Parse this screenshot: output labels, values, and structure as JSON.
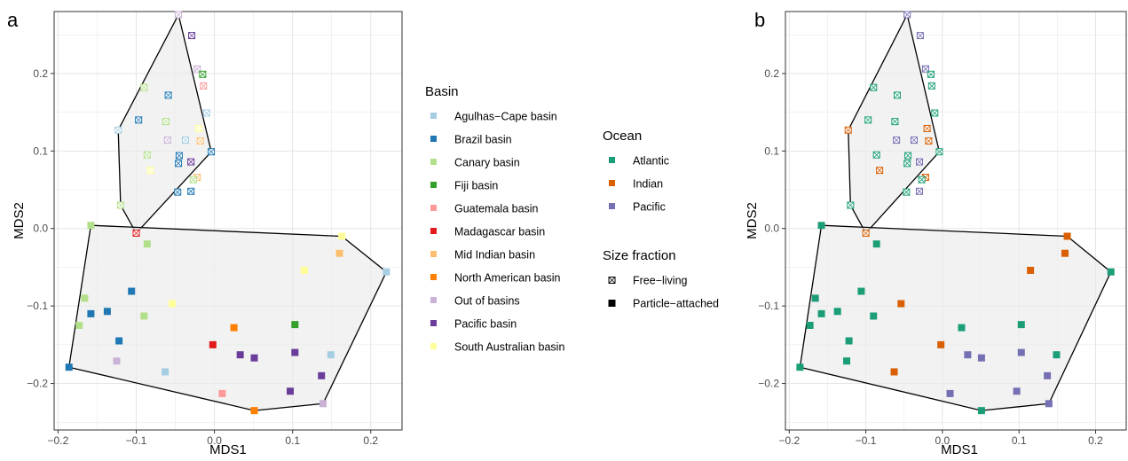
{
  "colors": {
    "basin": {
      "Agulhas-Cape basin": "#a6cee3",
      "Brazil basin": "#1f78b4",
      "Canary basin": "#b2df8a",
      "Fiji basin": "#33a02c",
      "Guatemala basin": "#fb9a99",
      "Madagascar basin": "#e31a1c",
      "Mid Indian basin": "#fdbf6f",
      "North American basin": "#ff7f00",
      "Out of basins": "#cab2d6",
      "Pacific basin": "#6a3d9a",
      "South Australian basin": "#ffff99"
    },
    "ocean": {
      "Atlantic": "#1b9e77",
      "Indian": "#d95f02",
      "Pacific": "#7570b3"
    },
    "hull_fill": "#ebebeb",
    "grid": "#e5e5e5"
  },
  "legend": {
    "basin_title": "Basin",
    "basin_items": [
      "Agulhas−Cape basin",
      "Brazil basin",
      "Canary basin",
      "Fiji basin",
      "Guatemala basin",
      "Madagascar basin",
      "Mid Indian basin",
      "North American basin",
      "Out of basins",
      "Pacific basin",
      "South Australian basin"
    ],
    "ocean_title": "Ocean",
    "ocean_items": [
      "Atlantic",
      "Indian",
      "Pacific"
    ],
    "size_title": "Size fraction",
    "size_items": [
      "Free−living",
      "Particle−attached"
    ]
  },
  "chart_data": [
    {
      "panel": "a",
      "type": "scatter",
      "xlabel": "MDS1",
      "ylabel": "MDS2",
      "xlim": [
        -0.205,
        0.24
      ],
      "ylim": [
        -0.26,
        0.28
      ],
      "xticks": [
        -0.2,
        -0.1,
        0.0,
        0.1,
        0.2
      ],
      "xtick_labels": [
        "−0.2",
        "−0.1",
        "0.0",
        "0.1",
        "0.2"
      ],
      "yticks": [
        -0.2,
        -0.1,
        0.0,
        0.1,
        0.2
      ],
      "ytick_labels": [
        "−0.2",
        "−0.1",
        "0.0",
        "0.1",
        "0.2"
      ],
      "color_by": "basin",
      "grid": true,
      "legend_position": "right",
      "points": [
        {
          "x": -0.046,
          "y": 0.276,
          "basin": "Out of basins",
          "ocean": "Pacific",
          "size": "Free-living"
        },
        {
          "x": -0.029,
          "y": 0.249,
          "basin": "Pacific basin",
          "ocean": "Pacific",
          "size": "Free-living"
        },
        {
          "x": -0.022,
          "y": 0.206,
          "basin": "Out of basins",
          "ocean": "Pacific",
          "size": "Free-living"
        },
        {
          "x": -0.015,
          "y": 0.199,
          "basin": "Fiji basin",
          "ocean": "Atlantic",
          "size": "Free-living"
        },
        {
          "x": -0.014,
          "y": 0.184,
          "basin": "Guatemala basin",
          "ocean": "Atlantic",
          "size": "Free-living"
        },
        {
          "x": -0.09,
          "y": 0.182,
          "basin": "Canary basin",
          "ocean": "Atlantic",
          "size": "Free-living"
        },
        {
          "x": -0.059,
          "y": 0.172,
          "basin": "Brazil basin",
          "ocean": "Atlantic",
          "size": "Free-living"
        },
        {
          "x": -0.01,
          "y": 0.149,
          "basin": "Agulhas-Cape basin",
          "ocean": "Atlantic",
          "size": "Free-living"
        },
        {
          "x": -0.097,
          "y": 0.14,
          "basin": "Brazil basin",
          "ocean": "Atlantic",
          "size": "Free-living"
        },
        {
          "x": -0.062,
          "y": 0.138,
          "basin": "Canary basin",
          "ocean": "Atlantic",
          "size": "Free-living"
        },
        {
          "x": -0.02,
          "y": 0.129,
          "basin": "South Australian basin",
          "ocean": "Indian",
          "size": "Free-living"
        },
        {
          "x": -0.123,
          "y": 0.127,
          "basin": "Agulhas-Cape basin",
          "ocean": "Indian",
          "size": "Free-living"
        },
        {
          "x": -0.037,
          "y": 0.114,
          "basin": "Agulhas-Cape basin",
          "ocean": "Pacific",
          "size": "Free-living"
        },
        {
          "x": -0.06,
          "y": 0.114,
          "basin": "Out of basins",
          "ocean": "Pacific",
          "size": "Free-living"
        },
        {
          "x": -0.018,
          "y": 0.113,
          "basin": "Mid Indian basin",
          "ocean": "Indian",
          "size": "Free-living"
        },
        {
          "x": -0.004,
          "y": 0.099,
          "basin": "Brazil basin",
          "ocean": "Atlantic",
          "size": "Free-living"
        },
        {
          "x": -0.086,
          "y": 0.095,
          "basin": "Canary basin",
          "ocean": "Atlantic",
          "size": "Free-living"
        },
        {
          "x": -0.045,
          "y": 0.094,
          "basin": "Brazil basin",
          "ocean": "Atlantic",
          "size": "Free-living"
        },
        {
          "x": -0.03,
          "y": 0.086,
          "basin": "Pacific basin",
          "ocean": "Pacific",
          "size": "Free-living"
        },
        {
          "x": -0.046,
          "y": 0.084,
          "basin": "Brazil basin",
          "ocean": "Atlantic",
          "size": "Free-living"
        },
        {
          "x": -0.082,
          "y": 0.075,
          "basin": "South Australian basin",
          "ocean": "Indian",
          "size": "Free-living"
        },
        {
          "x": -0.022,
          "y": 0.066,
          "basin": "Mid Indian basin",
          "ocean": "Indian",
          "size": "Free-living"
        },
        {
          "x": -0.027,
          "y": 0.063,
          "basin": "Canary basin",
          "ocean": "Atlantic",
          "size": "Free-living"
        },
        {
          "x": -0.03,
          "y": 0.048,
          "basin": "Brazil basin",
          "ocean": "Pacific",
          "size": "Free-living"
        },
        {
          "x": -0.047,
          "y": 0.047,
          "basin": "Brazil basin",
          "ocean": "Atlantic",
          "size": "Free-living"
        },
        {
          "x": -0.12,
          "y": 0.03,
          "basin": "Canary basin",
          "ocean": "Atlantic",
          "size": "Free-living"
        },
        {
          "x": -0.1,
          "y": -0.006,
          "basin": "Madagascar basin",
          "ocean": "Indian",
          "size": "Free-living"
        },
        {
          "x": -0.158,
          "y": 0.004,
          "basin": "Canary basin",
          "ocean": "Atlantic",
          "size": "Particle-attached"
        },
        {
          "x": -0.086,
          "y": -0.02,
          "basin": "Canary basin",
          "ocean": "Atlantic",
          "size": "Particle-attached"
        },
        {
          "x": 0.163,
          "y": -0.01,
          "basin": "South Australian basin",
          "ocean": "Indian",
          "size": "Particle-attached"
        },
        {
          "x": 0.16,
          "y": -0.032,
          "basin": "Mid Indian basin",
          "ocean": "Indian",
          "size": "Particle-attached"
        },
        {
          "x": 0.115,
          "y": -0.054,
          "basin": "South Australian basin",
          "ocean": "Indian",
          "size": "Particle-attached"
        },
        {
          "x": 0.22,
          "y": -0.056,
          "basin": "Agulhas-Cape basin",
          "ocean": "Atlantic",
          "size": "Particle-attached"
        },
        {
          "x": -0.106,
          "y": -0.081,
          "basin": "Brazil basin",
          "ocean": "Atlantic",
          "size": "Particle-attached"
        },
        {
          "x": -0.166,
          "y": -0.09,
          "basin": "Canary basin",
          "ocean": "Atlantic",
          "size": "Particle-attached"
        },
        {
          "x": -0.054,
          "y": -0.097,
          "basin": "South Australian basin",
          "ocean": "Indian",
          "size": "Particle-attached"
        },
        {
          "x": -0.137,
          "y": -0.107,
          "basin": "Brazil basin",
          "ocean": "Atlantic",
          "size": "Particle-attached"
        },
        {
          "x": -0.158,
          "y": -0.11,
          "basin": "Brazil basin",
          "ocean": "Atlantic",
          "size": "Particle-attached"
        },
        {
          "x": -0.09,
          "y": -0.113,
          "basin": "Canary basin",
          "ocean": "Atlantic",
          "size": "Particle-attached"
        },
        {
          "x": 0.103,
          "y": -0.124,
          "basin": "Fiji basin",
          "ocean": "Atlantic",
          "size": "Particle-attached"
        },
        {
          "x": -0.173,
          "y": -0.125,
          "basin": "Canary basin",
          "ocean": "Atlantic",
          "size": "Particle-attached"
        },
        {
          "x": 0.025,
          "y": -0.128,
          "basin": "North American basin",
          "ocean": "Atlantic",
          "size": "Particle-attached"
        },
        {
          "x": -0.122,
          "y": -0.145,
          "basin": "Brazil basin",
          "ocean": "Atlantic",
          "size": "Particle-attached"
        },
        {
          "x": -0.002,
          "y": -0.15,
          "basin": "Madagascar basin",
          "ocean": "Indian",
          "size": "Particle-attached"
        },
        {
          "x": 0.103,
          "y": -0.16,
          "basin": "Pacific basin",
          "ocean": "Pacific",
          "size": "Particle-attached"
        },
        {
          "x": 0.149,
          "y": -0.163,
          "basin": "Agulhas-Cape basin",
          "ocean": "Atlantic",
          "size": "Particle-attached"
        },
        {
          "x": 0.033,
          "y": -0.163,
          "basin": "Pacific basin",
          "ocean": "Pacific",
          "size": "Particle-attached"
        },
        {
          "x": 0.051,
          "y": -0.167,
          "basin": "Pacific basin",
          "ocean": "Pacific",
          "size": "Particle-attached"
        },
        {
          "x": -0.125,
          "y": -0.171,
          "basin": "Out of basins",
          "ocean": "Atlantic",
          "size": "Particle-attached"
        },
        {
          "x": -0.186,
          "y": -0.179,
          "basin": "Brazil basin",
          "ocean": "Atlantic",
          "size": "Particle-attached"
        },
        {
          "x": -0.063,
          "y": -0.185,
          "basin": "Agulhas-Cape basin",
          "ocean": "Indian",
          "size": "Particle-attached"
        },
        {
          "x": 0.137,
          "y": -0.19,
          "basin": "Pacific basin",
          "ocean": "Pacific",
          "size": "Particle-attached"
        },
        {
          "x": 0.097,
          "y": -0.21,
          "basin": "Pacific basin",
          "ocean": "Pacific",
          "size": "Particle-attached"
        },
        {
          "x": 0.01,
          "y": -0.213,
          "basin": "Guatemala basin",
          "ocean": "Pacific",
          "size": "Particle-attached"
        },
        {
          "x": 0.139,
          "y": -0.226,
          "basin": "Out of basins",
          "ocean": "Pacific",
          "size": "Particle-attached"
        },
        {
          "x": 0.051,
          "y": -0.235,
          "basin": "North American basin",
          "ocean": "Atlantic",
          "size": "Particle-attached"
        }
      ],
      "hulls": [
        [
          [
            -0.046,
            0.276
          ],
          [
            -0.004,
            0.099
          ],
          [
            -0.1,
            -0.006
          ],
          [
            -0.12,
            0.03
          ],
          [
            -0.123,
            0.127
          ]
        ],
        [
          [
            -0.158,
            0.004
          ],
          [
            0.163,
            -0.01
          ],
          [
            0.22,
            -0.056
          ],
          [
            0.139,
            -0.226
          ],
          [
            0.051,
            -0.235
          ],
          [
            -0.186,
            -0.179
          ]
        ]
      ]
    },
    {
      "panel": "b",
      "type": "scatter",
      "xlabel": "MDS1",
      "ylabel": "MDS2",
      "xlim": [
        -0.205,
        0.24
      ],
      "ylim": [
        -0.26,
        0.28
      ],
      "xticks": [
        -0.2,
        -0.1,
        0.0,
        0.1,
        0.2
      ],
      "xtick_labels": [
        "−0.2",
        "−0.1",
        "0.0",
        "0.1",
        "0.2"
      ],
      "yticks": [
        -0.2,
        -0.1,
        0.0,
        0.1,
        0.2
      ],
      "ytick_labels": [
        "−0.2",
        "−0.1",
        "0.0",
        "0.1",
        "0.2"
      ],
      "color_by": "ocean",
      "grid": true,
      "legend_position": "none",
      "points_from_panel": "a"
    }
  ],
  "panel_letters": [
    "a",
    "b"
  ]
}
